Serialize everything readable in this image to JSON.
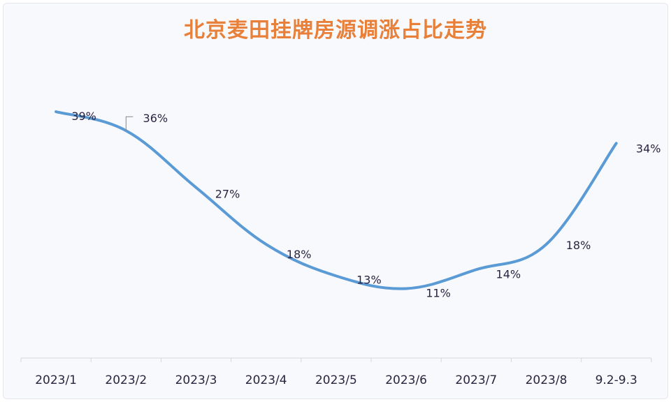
{
  "chart_data": {
    "type": "line",
    "title": "北京麦田挂牌房源调涨占比走势",
    "categories": [
      "2023/1",
      "2023/2",
      "2023/3",
      "2023/4",
      "2023/5",
      "2023/6",
      "2023/7",
      "2023/8",
      "9.2-9.3"
    ],
    "values": [
      39,
      36,
      27,
      18,
      13,
      11,
      14,
      18,
      34
    ],
    "data_labels": [
      "39%",
      "36%",
      "27%",
      "18%",
      "13%",
      "11%",
      "14%",
      "18%",
      "34%"
    ],
    "xlabel": "",
    "ylabel": "",
    "ylim": [
      0,
      45
    ],
    "grid": false,
    "smooth": true,
    "line_color": "#5b9bd5",
    "title_color": "#e8803a"
  }
}
